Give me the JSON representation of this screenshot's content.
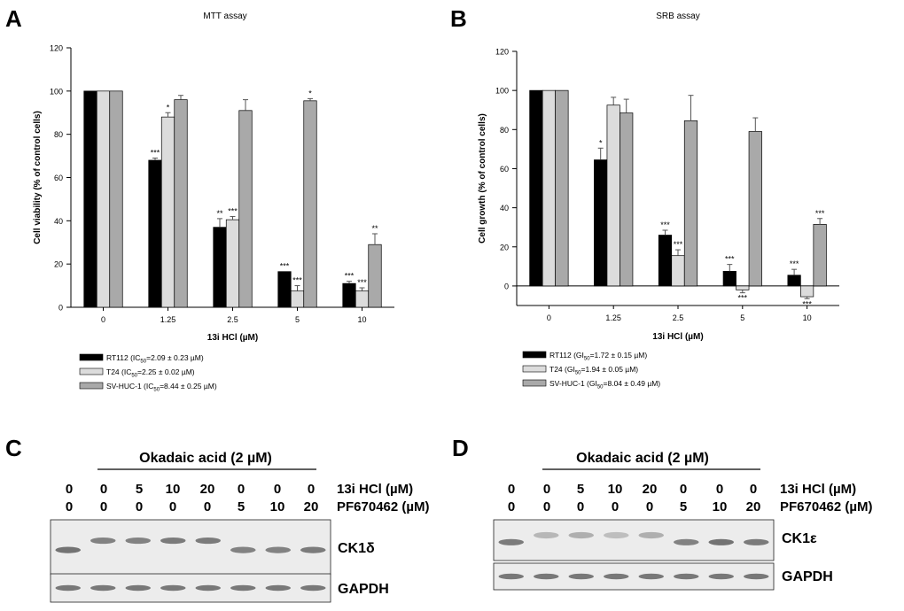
{
  "chart_data": [
    {
      "panel": "A",
      "type": "bar",
      "title": "MTT assay",
      "xlabel": "13i HCl (µM)",
      "ylabel": "Cell viability (% of control cells)",
      "ylim": [
        0,
        120
      ],
      "yticks": [
        0,
        20,
        40,
        60,
        80,
        100,
        120
      ],
      "categories": [
        "0",
        "1.25",
        "2.5",
        "5",
        "10"
      ],
      "series": [
        {
          "name": "RT112",
          "legend_prefix": "RT112 (IC",
          "legend_sub": "50",
          "legend_suffix": "=2.09 ±  0.23 µM)",
          "color": "#000000",
          "values": [
            100,
            68,
            37,
            16.5,
            11
          ],
          "errors": [
            0,
            1,
            4,
            0,
            1
          ],
          "sig": [
            "",
            "***",
            "**",
            "***",
            "***"
          ]
        },
        {
          "name": "T24",
          "legend_prefix": "T24 (IC",
          "legend_sub": "50",
          "legend_suffix": "=2.25 ±  0.02 µM)",
          "color": "#dcdcdc",
          "values": [
            100,
            88,
            40.5,
            7.5,
            7.5
          ],
          "errors": [
            0,
            2,
            1.5,
            2.5,
            1.5
          ],
          "sig": [
            "",
            "*",
            "***",
            "***",
            "***"
          ]
        },
        {
          "name": "SV-HUC-1",
          "legend_prefix": "SV-HUC-1 (IC",
          "legend_sub": "50",
          "legend_suffix": "=8.44 ±  0.25 µM)",
          "color": "#a9a9a9",
          "values": [
            100,
            96,
            91,
            95.5,
            29
          ],
          "errors": [
            0,
            2,
            5,
            1,
            5
          ],
          "sig": [
            "",
            "",
            "",
            "*",
            "**"
          ]
        }
      ]
    },
    {
      "panel": "B",
      "type": "bar",
      "title": "SRB assay",
      "xlabel": "13i HCl (µM)",
      "ylabel": "Cell growth (% of control cells)",
      "ylim": [
        -10,
        120
      ],
      "yticks": [
        0,
        20,
        40,
        60,
        80,
        100,
        120
      ],
      "categories": [
        "0",
        "1.25",
        "2.5",
        "5",
        "10"
      ],
      "series": [
        {
          "name": "RT112",
          "legend_prefix": "RT112 (GI",
          "legend_sub": "50",
          "legend_suffix": "=1.72 ±  0.15 µM)",
          "color": "#000000",
          "values": [
            100,
            64.5,
            26,
            7.5,
            5.5
          ],
          "errors": [
            0,
            6,
            2.5,
            3.5,
            3
          ],
          "sig": [
            "",
            "*",
            "***",
            "***",
            "***"
          ]
        },
        {
          "name": "T24",
          "legend_prefix": "T24 (GI",
          "legend_sub": "50",
          "legend_suffix": "=1.94 ±  0.05 µM)",
          "color": "#dcdcdc",
          "values": [
            100,
            92.5,
            15.5,
            -2,
            -5.5
          ],
          "errors": [
            0,
            4,
            3,
            1.5,
            1
          ],
          "sig": [
            "",
            "",
            "***",
            "***",
            "***"
          ]
        },
        {
          "name": "SV-HUC-1",
          "legend_prefix": "SV-HUC-1 (GI",
          "legend_sub": "50",
          "legend_suffix": "=8.04 ±  0.49 µM)",
          "color": "#a9a9a9",
          "values": [
            100,
            88.5,
            84.5,
            79,
            31.5
          ],
          "errors": [
            0,
            7,
            13,
            7,
            3
          ],
          "sig": [
            "",
            "",
            "",
            "",
            "***"
          ]
        }
      ]
    }
  ],
  "panel_labels": {
    "a": "A",
    "b": "B",
    "c": "C",
    "d": "D"
  },
  "blots": [
    {
      "panel": "C",
      "treatment_label": "Okadaic acid (2 µM)",
      "row1_values": [
        "0",
        "0",
        "5",
        "10",
        "20",
        "0",
        "0",
        "0"
      ],
      "row1_label": "13i HCl (µM)",
      "row2_values": [
        "0",
        "0",
        "0",
        "0",
        "0",
        "5",
        "10",
        "20"
      ],
      "row2_label": "PF670462 (µM)",
      "band_labels": [
        "CK1δ",
        "GAPDH"
      ],
      "target_shift": [
        0,
        1,
        1,
        1,
        1,
        0,
        0,
        0
      ],
      "target_intensity": [
        0.8,
        0.7,
        0.7,
        0.75,
        0.75,
        0.7,
        0.7,
        0.75
      ]
    },
    {
      "panel": "D",
      "treatment_label": "Okadaic acid (2 µM)",
      "row1_values": [
        "0",
        "0",
        "5",
        "10",
        "20",
        "0",
        "0",
        "0"
      ],
      "row1_label": "13i HCl (µM)",
      "row2_values": [
        "0",
        "0",
        "0",
        "0",
        "0",
        "5",
        "10",
        "20"
      ],
      "row2_label": "PF670462 (µM)",
      "band_labels": [
        "CK1ε",
        "GAPDH"
      ],
      "target_shift": [
        0,
        1,
        1,
        1,
        1,
        0,
        0,
        0
      ],
      "target_intensity": [
        0.75,
        0.35,
        0.4,
        0.3,
        0.4,
        0.7,
        0.8,
        0.75
      ]
    }
  ]
}
